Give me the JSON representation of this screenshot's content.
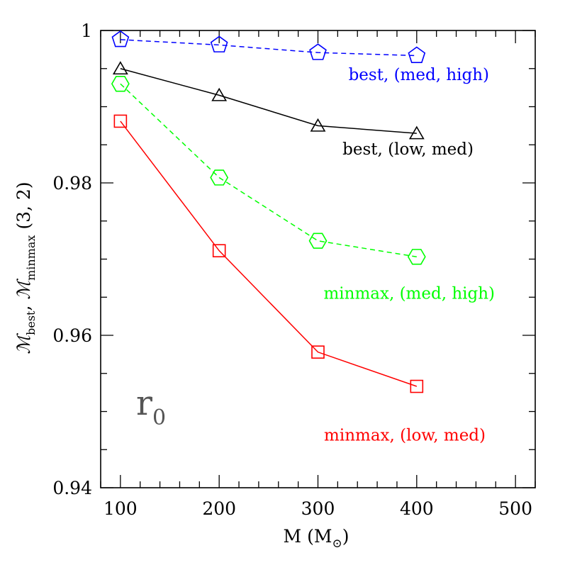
{
  "chart_data": {
    "type": "line",
    "xlabel": {
      "main": "M (M",
      "sub": "⊙",
      "close": ")"
    },
    "ylabel": {
      "m1": "ℳ",
      "m1_sub": "best",
      "sep": ", ",
      "m2": "ℳ",
      "m2_sub": "minmax",
      "suffix": " (3, 2)"
    },
    "xlim": [
      80,
      520
    ],
    "ylim": [
      0.94,
      1.0
    ],
    "xticks": [
      100,
      200,
      300,
      400,
      500
    ],
    "xtick_labels": [
      "100",
      "200",
      "300",
      "400",
      "500"
    ],
    "yticks": [
      0.94,
      0.96,
      0.98,
      1.0
    ],
    "ytick_labels": [
      "0.94",
      "0.96",
      "0.98",
      "1"
    ],
    "annotation": {
      "main": "r",
      "sub": "0"
    },
    "grid": false,
    "series": [
      {
        "name": "best, (med, high)",
        "color": "#0000ff",
        "dash": "dashed",
        "marker": "pentagon",
        "x": [
          100,
          200,
          300,
          400
        ],
        "y": [
          0.9988,
          0.9981,
          0.9971,
          0.9967
        ],
        "label_anchor": [
          690,
          0.9935
        ]
      },
      {
        "name": "best, (low, med)",
        "color": "#000000",
        "dash": "solid",
        "marker": "triangle",
        "x": [
          100,
          200,
          300,
          400
        ],
        "y": [
          0.995,
          0.9915,
          0.9875,
          0.9865
        ],
        "label_anchor": [
          668,
          0.9837
        ]
      },
      {
        "name": "minmax, (med, high)",
        "color": "#00ff00",
        "dash": "dashed",
        "marker": "hexagon",
        "x": [
          100,
          200,
          300,
          400
        ],
        "y": [
          0.993,
          0.9807,
          0.9724,
          0.9703
        ],
        "label_anchor": [
          698,
          0.9648
        ]
      },
      {
        "name": "minmax, (low, med)",
        "color": "#ff0000",
        "dash": "solid",
        "marker": "square",
        "x": [
          100,
          200,
          300,
          400
        ],
        "y": [
          0.9881,
          0.9711,
          0.9578,
          0.9533
        ],
        "label_anchor": [
          685,
          0.9462
        ]
      }
    ]
  }
}
